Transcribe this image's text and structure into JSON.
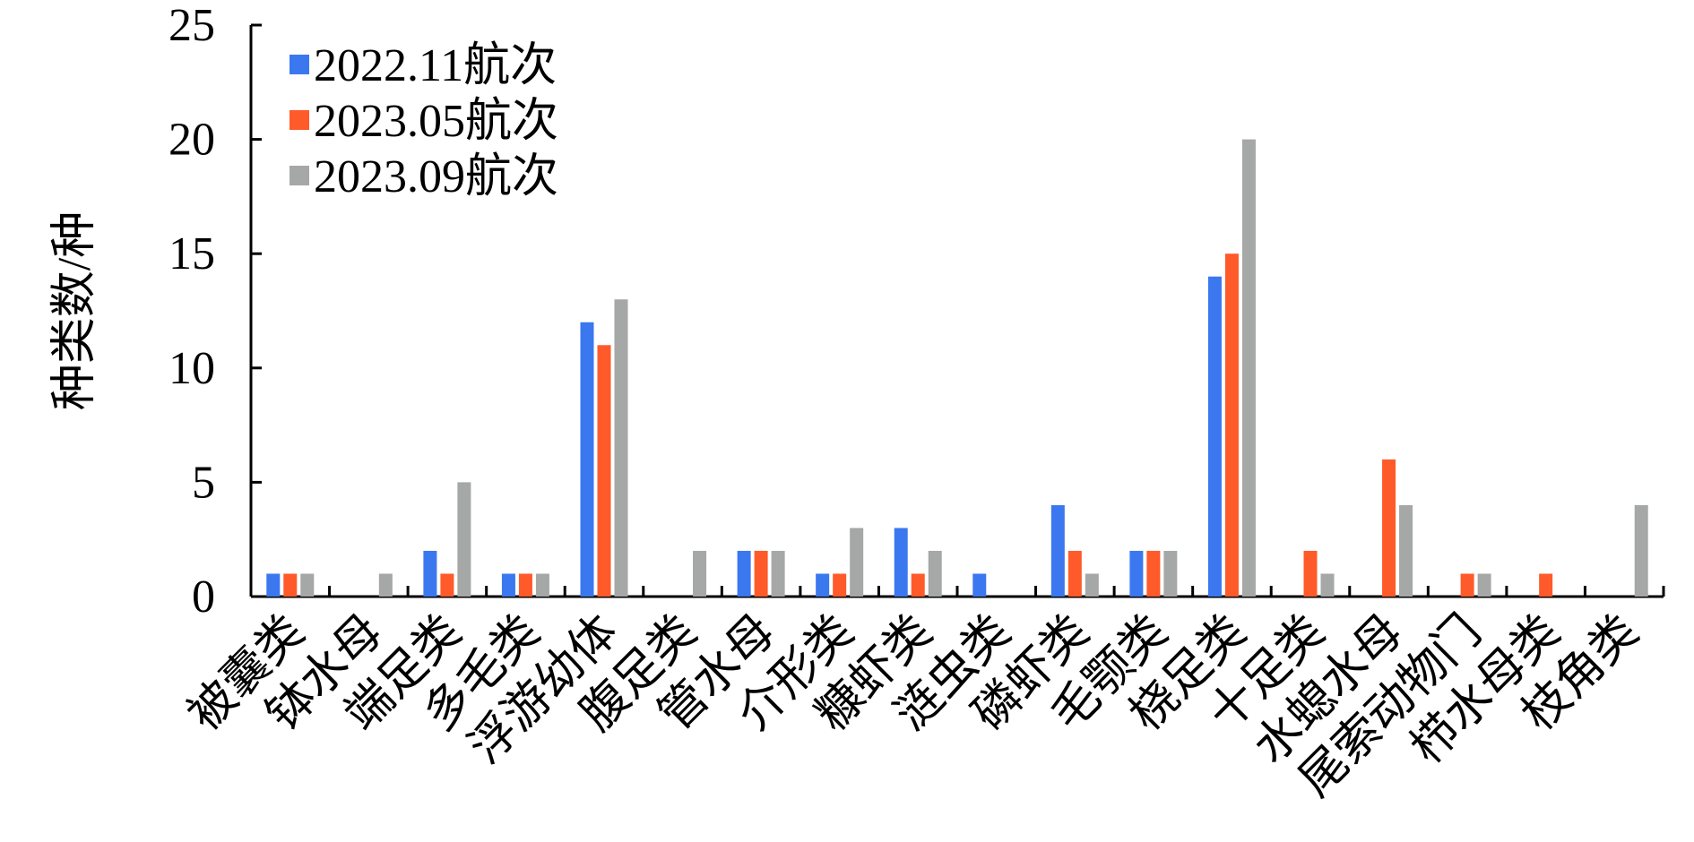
{
  "chart_data": {
    "type": "bar",
    "title": "",
    "xlabel": "",
    "ylabel": "种类数/种",
    "ylim": [
      0,
      25
    ],
    "yticks": [
      0,
      5,
      10,
      15,
      20,
      25
    ],
    "grid": false,
    "legend_position": "top-left",
    "categories": [
      "被囊类",
      "钵水母",
      "端足类",
      "多毛类",
      "浮游幼体",
      "腹足类",
      "管水母",
      "介形类",
      "糠虾类",
      "涟虫类",
      "磷虾类",
      "毛颚类",
      "桡足类",
      "十足类",
      "水螅水母",
      "尾索动物门",
      "栉水母类",
      "枝角类"
    ],
    "series": [
      {
        "name": "2022.11航次",
        "color": "#3b78f0",
        "values": [
          1,
          0,
          2,
          1,
          12,
          0,
          2,
          1,
          3,
          1,
          4,
          2,
          14,
          0,
          0,
          0,
          0,
          0
        ]
      },
      {
        "name": "2023.05航次",
        "color": "#ff5a2a",
        "values": [
          1,
          0,
          1,
          1,
          11,
          0,
          2,
          1,
          1,
          0,
          2,
          2,
          15,
          2,
          6,
          1,
          1,
          0
        ]
      },
      {
        "name": "2023.09航次",
        "color": "#a5a8a6",
        "values": [
          1,
          1,
          5,
          1,
          13,
          2,
          2,
          3,
          2,
          0,
          1,
          2,
          20,
          1,
          4,
          1,
          0,
          4
        ]
      }
    ]
  }
}
